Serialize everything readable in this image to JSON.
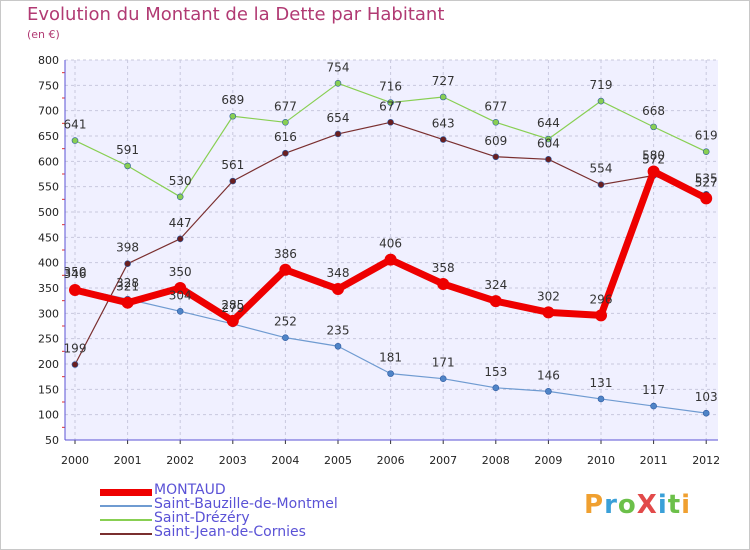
{
  "title": "Evolution du Montant de la Dette par Habitant",
  "subtitle": "(en €)",
  "logo": {
    "text": "ProXiti",
    "colors": [
      "#f0a030",
      "#3aa0d8",
      "#6cc04a",
      "#e24a4a",
      "#3aa0d8",
      "#6cc04a",
      "#f0a030"
    ]
  },
  "chart_data": {
    "type": "line",
    "x": [
      "2000",
      "2001",
      "2002",
      "2003",
      "2004",
      "2005",
      "2006",
      "2007",
      "2008",
      "2009",
      "2010",
      "2011",
      "2012"
    ],
    "ylim": [
      50,
      800
    ],
    "yticks": [
      "50",
      "100",
      "150",
      "200",
      "250",
      "300",
      "350",
      "400",
      "450",
      "500",
      "550",
      "600",
      "650",
      "700",
      "750",
      "800"
    ],
    "grid": true,
    "legend_position": "bottom-left",
    "series": [
      {
        "name": "MONTAUD",
        "color": "#ee0000",
        "values": [
          346,
          321,
          350,
          285,
          386,
          348,
          406,
          358,
          324,
          302,
          296,
          580,
          527
        ]
      },
      {
        "name": "Saint-Bauzille-de-Montmel",
        "color": "#6f9bd1",
        "values": [
          350,
          328,
          304,
          279,
          252,
          235,
          181,
          171,
          153,
          146,
          131,
          117,
          103
        ]
      },
      {
        "name": "Saint-Drézéry",
        "color": "#88cf52",
        "values": [
          641,
          591,
          530,
          689,
          677,
          754,
          716,
          727,
          677,
          644,
          719,
          668,
          619
        ]
      },
      {
        "name": "Saint-Jean-de-Cornies",
        "color": "#7a2f2f",
        "values": [
          199,
          398,
          447,
          561,
          616,
          654,
          677,
          643,
          609,
          604,
          554,
          572,
          535
        ]
      }
    ]
  }
}
